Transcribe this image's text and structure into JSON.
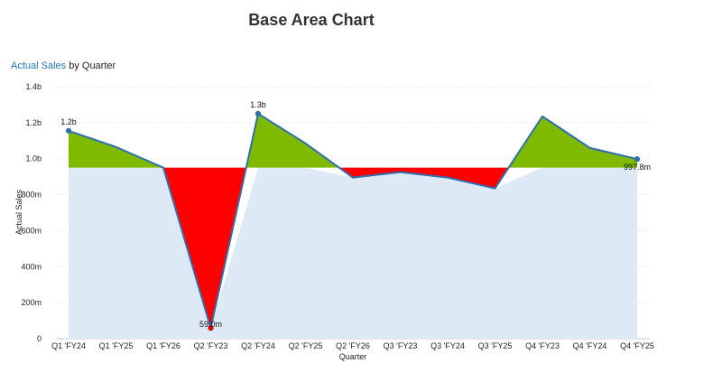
{
  "chart_data": {
    "type": "area",
    "title": "Base Area Chart",
    "subtitle_highlight": "Actual Sales",
    "subtitle_rest": " by Quarter",
    "xlabel": "Quarter",
    "ylabel": "Actual Sales",
    "baseline": 950000000,
    "ylim": [
      0,
      1400000000
    ],
    "yticks": [
      {
        "value": 0,
        "label": "0"
      },
      {
        "value": 200000000,
        "label": "200m"
      },
      {
        "value": 400000000,
        "label": "400m"
      },
      {
        "value": 600000000,
        "label": "600m"
      },
      {
        "value": 800000000,
        "label": "800m"
      },
      {
        "value": 1000000000,
        "label": "1.0b"
      },
      {
        "value": 1200000000,
        "label": "1.2b"
      },
      {
        "value": 1400000000,
        "label": "1.4b"
      }
    ],
    "categories": [
      "Q1 'FY24",
      "Q1 'FY25",
      "Q1 'FY26",
      "Q2 'FY23",
      "Q2 'FY24",
      "Q2 'FY25",
      "Q2 'FY26",
      "Q3 'FY23",
      "Q3 'FY24",
      "Q3 'FY25",
      "Q4 'FY23",
      "Q4 'FY24",
      "Q4 'FY25"
    ],
    "series": [
      {
        "values": [
          1155000000,
          1065000000,
          950000000,
          59000000,
          1250000000,
          1085000000,
          895000000,
          925000000,
          895000000,
          835000000,
          1235000000,
          1060000000,
          997800000
        ]
      }
    ],
    "data_labels": [
      {
        "index": 0,
        "text": "1.2b"
      },
      {
        "index": 3,
        "text": "59.0m"
      },
      {
        "index": 4,
        "text": "1.3b"
      },
      {
        "index": 12,
        "text": "997.8m"
      }
    ],
    "marked_points": [
      0,
      3,
      4,
      12
    ],
    "grid": true,
    "colors": {
      "line": "#2f6fb0",
      "above": "#7fba00",
      "below": "#ff0000",
      "base_fill": "#dde9f5",
      "grid": "#e3e3e3",
      "axis": "#c8c8c8"
    }
  }
}
